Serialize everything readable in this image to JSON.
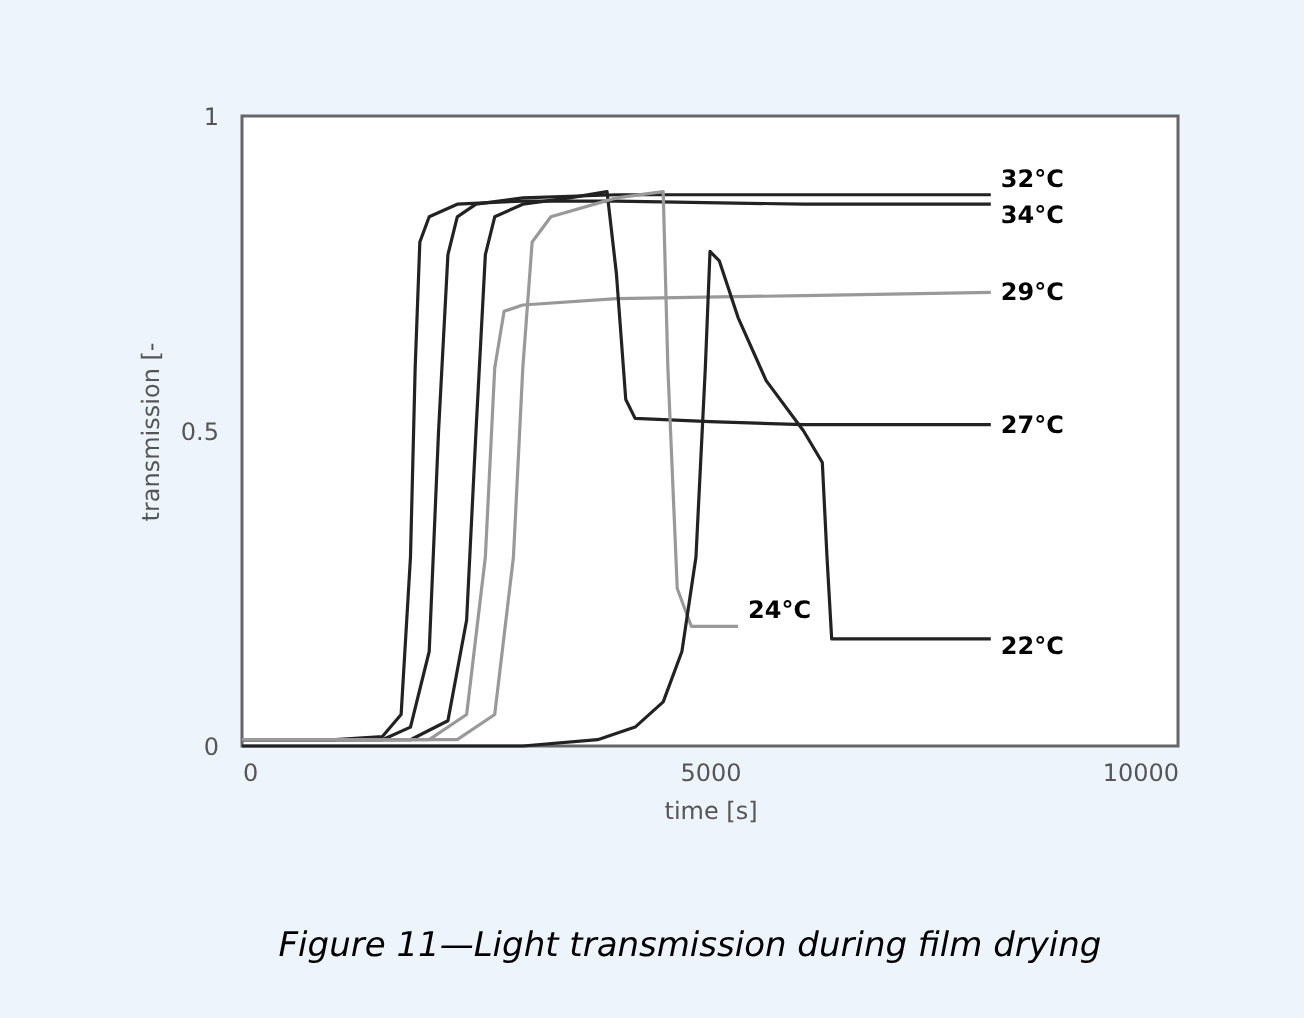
{
  "chart_data": {
    "type": "line",
    "xlabel": "time [s]",
    "ylabel": "transmission [-",
    "xlim": [
      0,
      10000
    ],
    "xticks": [
      0,
      5000,
      10000
    ],
    "ylim": [
      0,
      1
    ],
    "yticks": [
      0,
      0.5,
      1
    ],
    "grid": false,
    "legend": false,
    "marker": "none",
    "line_style": "solid",
    "series": [
      {
        "name": "32°C",
        "color": "#222222",
        "x": [
          0,
          1500,
          1800,
          2000,
          2100,
          2200,
          2300,
          2500,
          3000,
          4000,
          8000
        ],
        "values": [
          0.01,
          0.01,
          0.03,
          0.15,
          0.5,
          0.78,
          0.84,
          0.86,
          0.87,
          0.875,
          0.875
        ]
      },
      {
        "name": "34°C",
        "color": "#222222",
        "x": [
          0,
          1000,
          1500,
          1700,
          1800,
          1850,
          1900,
          2000,
          2300,
          3000,
          4000,
          6000,
          8000
        ],
        "values": [
          0.01,
          0.01,
          0.015,
          0.05,
          0.3,
          0.6,
          0.8,
          0.84,
          0.86,
          0.865,
          0.865,
          0.86,
          0.86
        ]
      },
      {
        "name": "29°C",
        "color": "#999999",
        "x": [
          0,
          2000,
          2400,
          2600,
          2700,
          2800,
          3000,
          4000,
          6000,
          8000
        ],
        "values": [
          0.01,
          0.01,
          0.05,
          0.3,
          0.6,
          0.69,
          0.7,
          0.71,
          0.715,
          0.72
        ]
      },
      {
        "name": "27°C",
        "color": "#222222",
        "x": [
          0,
          1800,
          2200,
          2400,
          2500,
          2600,
          2700,
          3000,
          3500,
          3900,
          4000,
          4100,
          4200,
          5000,
          6000,
          8000
        ],
        "values": [
          0.01,
          0.01,
          0.04,
          0.2,
          0.5,
          0.78,
          0.84,
          0.86,
          0.87,
          0.88,
          0.75,
          0.55,
          0.52,
          0.515,
          0.51,
          0.51
        ]
      },
      {
        "name": "24°C",
        "color": "#999999",
        "x": [
          0,
          2300,
          2700,
          2900,
          3000,
          3100,
          3300,
          4000,
          4500,
          4550,
          4650,
          4800,
          5000,
          5300
        ],
        "values": [
          0.01,
          0.01,
          0.05,
          0.3,
          0.6,
          0.8,
          0.84,
          0.87,
          0.88,
          0.6,
          0.25,
          0.19,
          0.19,
          0.19
        ]
      },
      {
        "name": "22°C",
        "color": "#222222",
        "x": [
          0,
          3000,
          3800,
          4200,
          4500,
          4700,
          4850,
          4950,
          5000,
          5100,
          5300,
          5600,
          6000,
          6200,
          6250,
          6300,
          7000,
          8000
        ],
        "values": [
          0.0,
          0.0,
          0.01,
          0.03,
          0.07,
          0.15,
          0.3,
          0.6,
          0.785,
          0.77,
          0.68,
          0.58,
          0.5,
          0.45,
          0.3,
          0.17,
          0.17,
          0.17
        ]
      }
    ],
    "annotations": [
      "Figure 11—Light transmission during film drying"
    ]
  }
}
